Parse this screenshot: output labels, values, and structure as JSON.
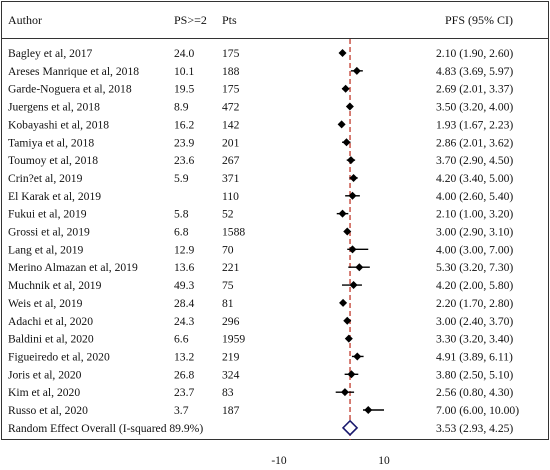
{
  "chart_data": {
    "type": "forest",
    "columns": {
      "author": "Author",
      "ps": "PS>=2",
      "pts": "Pts",
      "pfs": "PFS (95% CI)"
    },
    "xaxis": {
      "ticks": [
        -10,
        10
      ],
      "range": [
        -18,
        15
      ],
      "reference_line": 3.53
    },
    "studies": [
      {
        "author": "Bagley et al, 2017",
        "ps": "24.0",
        "pts": "175",
        "pfs": "2.10 (1.90, 2.60)",
        "est": 2.1,
        "lo": 1.9,
        "hi": 2.6
      },
      {
        "author": "Areses Manrique et al, 2018",
        "ps": "10.1",
        "pts": "188",
        "pfs": "4.83 (3.69, 5.97)",
        "est": 4.83,
        "lo": 3.69,
        "hi": 5.97
      },
      {
        "author": "Garde-Noguera et al, 2018",
        "ps": "19.5",
        "pts": "175",
        "pfs": "2.69 (2.01, 3.37)",
        "est": 2.69,
        "lo": 2.01,
        "hi": 3.37
      },
      {
        "author": "Juergens et al, 2018",
        "ps": "8.9",
        "pts": "472",
        "pfs": "3.50 (3.20, 4.00)",
        "est": 3.5,
        "lo": 3.2,
        "hi": 4.0
      },
      {
        "author": "Kobayashi et al, 2018",
        "ps": "16.2",
        "pts": "142",
        "pfs": "1.93 (1.67, 2.23)",
        "est": 1.93,
        "lo": 1.67,
        "hi": 2.23
      },
      {
        "author": "Tamiya et al, 2018",
        "ps": "23.9",
        "pts": "201",
        "pfs": "2.86 (2.01, 3.62)",
        "est": 2.86,
        "lo": 2.01,
        "hi": 3.62
      },
      {
        "author": "Toumoy et al, 2018",
        "ps": "23.6",
        "pts": "267",
        "pfs": "3.70 (2.90, 4.50)",
        "est": 3.7,
        "lo": 2.9,
        "hi": 4.5
      },
      {
        "author": "Crin?et al, 2019",
        "ps": "5.9",
        "pts": "371",
        "pfs": "4.20 (3.40, 5.00)",
        "est": 4.2,
        "lo": 3.4,
        "hi": 5.0
      },
      {
        "author": "El Karak et al, 2019",
        "ps": "",
        "pts": "110",
        "pfs": "4.00 (2.60, 5.40)",
        "est": 4.0,
        "lo": 2.6,
        "hi": 5.4
      },
      {
        "author": "Fukui et al, 2019",
        "ps": "5.8",
        "pts": "52",
        "pfs": "2.10 (1.00, 3.20)",
        "est": 2.1,
        "lo": 1.0,
        "hi": 3.2
      },
      {
        "author": "Grossi et al, 2019",
        "ps": "6.8",
        "pts": "1588",
        "pfs": "3.00 (2.90, 3.10)",
        "est": 3.0,
        "lo": 2.9,
        "hi": 3.1
      },
      {
        "author": "Lang et al, 2019",
        "ps": "12.9",
        "pts": "70",
        "pfs": "4.00 (3.00, 7.00)",
        "est": 4.0,
        "lo": 3.0,
        "hi": 7.0
      },
      {
        "author": "Merino Almazan et al, 2019",
        "ps": "13.6",
        "pts": "221",
        "pfs": "5.30 (3.20, 7.30)",
        "est": 5.3,
        "lo": 3.2,
        "hi": 7.3
      },
      {
        "author": "Muchnik et al, 2019",
        "ps": "49.3",
        "pts": "75",
        "pfs": "4.20 (2.00, 5.80)",
        "est": 4.2,
        "lo": 2.0,
        "hi": 5.8
      },
      {
        "author": "Weis et al, 2019",
        "ps": "28.4",
        "pts": "81",
        "pfs": "2.20 (1.70, 2.80)",
        "est": 2.2,
        "lo": 1.7,
        "hi": 2.8
      },
      {
        "author": "Adachi et al, 2020",
        "ps": "24.3",
        "pts": "296",
        "pfs": "3.00 (2.40, 3.70)",
        "est": 3.0,
        "lo": 2.4,
        "hi": 3.7
      },
      {
        "author": "Baldini et al, 2020",
        "ps": "6.6",
        "pts": "1959",
        "pfs": "3.30 (3.20, 3.40)",
        "est": 3.3,
        "lo": 3.2,
        "hi": 3.4
      },
      {
        "author": "Figueiredo et al, 2020",
        "ps": "13.2",
        "pts": "219",
        "pfs": "4.91 (3.89, 6.11)",
        "est": 4.91,
        "lo": 3.89,
        "hi": 6.11
      },
      {
        "author": "Joris et al, 2020",
        "ps": "26.8",
        "pts": "324",
        "pfs": "3.80 (2.50, 5.10)",
        "est": 3.8,
        "lo": 2.5,
        "hi": 5.1
      },
      {
        "author": "Kim et al, 2020",
        "ps": "23.7",
        "pts": "83",
        "pfs": "2.56 (0.80, 4.30)",
        "est": 2.56,
        "lo": 0.8,
        "hi": 4.3
      },
      {
        "author": "Russo et al, 2020",
        "ps": "3.7",
        "pts": "187",
        "pfs": "7.00 (6.00, 10.00)",
        "est": 7.0,
        "lo": 6.0,
        "hi": 10.0
      }
    ],
    "overall": {
      "label": "Random Effect Overall (I-squared 89.9%)",
      "pfs": "3.53 (2.93, 4.25)",
      "est": 3.53,
      "lo": 2.93,
      "hi": 4.25
    },
    "colors": {
      "reference_line": "#c0392b",
      "overall_diamond": "#1a1a6e",
      "marker": "#000000"
    }
  }
}
